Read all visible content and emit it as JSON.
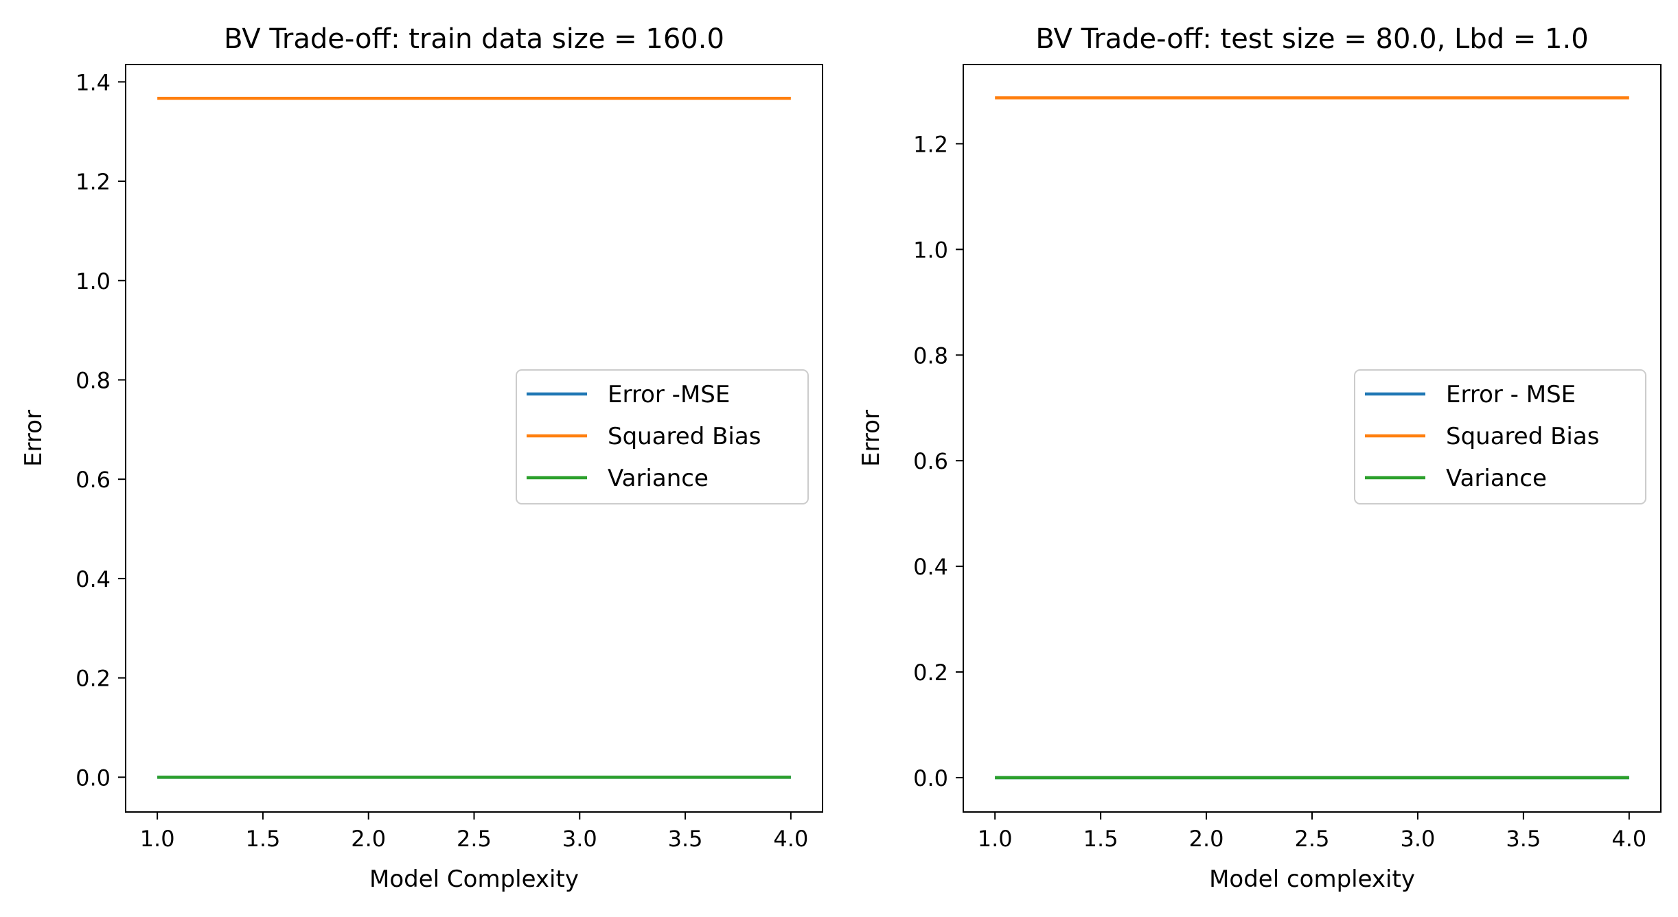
{
  "chart_data": [
    {
      "type": "line",
      "title": "BV Trade-off: train data size = 160.0",
      "xlabel": "Model Complexity",
      "ylabel": "Error",
      "xlim": [
        0.85,
        4.15
      ],
      "ylim": [
        -0.07,
        1.435
      ],
      "xticks": [
        1.0,
        1.5,
        2.0,
        2.5,
        3.0,
        3.5,
        4.0
      ],
      "xtick_labels": [
        "1.0",
        "1.5",
        "2.0",
        "2.5",
        "3.0",
        "3.5",
        "4.0"
      ],
      "yticks": [
        0.0,
        0.2,
        0.4,
        0.6,
        0.8,
        1.0,
        1.2,
        1.4
      ],
      "ytick_labels": [
        "0.0",
        "0.2",
        "0.4",
        "0.6",
        "0.8",
        "1.0",
        "1.2",
        "1.4"
      ],
      "grid": false,
      "legend_position": "center-right",
      "x": [
        1,
        2,
        3,
        4
      ],
      "series": [
        {
          "name": "Error -MSE",
          "color": "#1f77b4",
          "values": [
            0.0,
            0.0,
            0.0,
            0.0
          ]
        },
        {
          "name": "Squared Bias",
          "color": "#ff7f0e",
          "values": [
            1.367,
            1.367,
            1.367,
            1.367
          ]
        },
        {
          "name": "Variance",
          "color": "#2ca02c",
          "values": [
            0.0,
            0.0,
            0.0,
            0.0
          ]
        }
      ]
    },
    {
      "type": "line",
      "title": "BV Trade-off: test size = 80.0, Lbd = 1.0",
      "xlabel": "Model complexity",
      "ylabel": "Error",
      "xlim": [
        0.85,
        4.15
      ],
      "ylim": [
        -0.065,
        1.35
      ],
      "xticks": [
        1.0,
        1.5,
        2.0,
        2.5,
        3.0,
        3.5,
        4.0
      ],
      "xtick_labels": [
        "1.0",
        "1.5",
        "2.0",
        "2.5",
        "3.0",
        "3.5",
        "4.0"
      ],
      "yticks": [
        0.0,
        0.2,
        0.4,
        0.6,
        0.8,
        1.0,
        1.2
      ],
      "ytick_labels": [
        "0.0",
        "0.2",
        "0.4",
        "0.6",
        "0.8",
        "1.0",
        "1.2"
      ],
      "grid": false,
      "legend_position": "center-right",
      "x": [
        1,
        2,
        3,
        4
      ],
      "series": [
        {
          "name": "Error - MSE",
          "color": "#1f77b4",
          "values": [
            0.0,
            0.0,
            0.0,
            0.0
          ]
        },
        {
          "name": "Squared Bias",
          "color": "#ff7f0e",
          "values": [
            1.287,
            1.287,
            1.287,
            1.287
          ]
        },
        {
          "name": "Variance",
          "color": "#2ca02c",
          "values": [
            0.0,
            0.0,
            0.0,
            0.0
          ]
        }
      ]
    }
  ]
}
